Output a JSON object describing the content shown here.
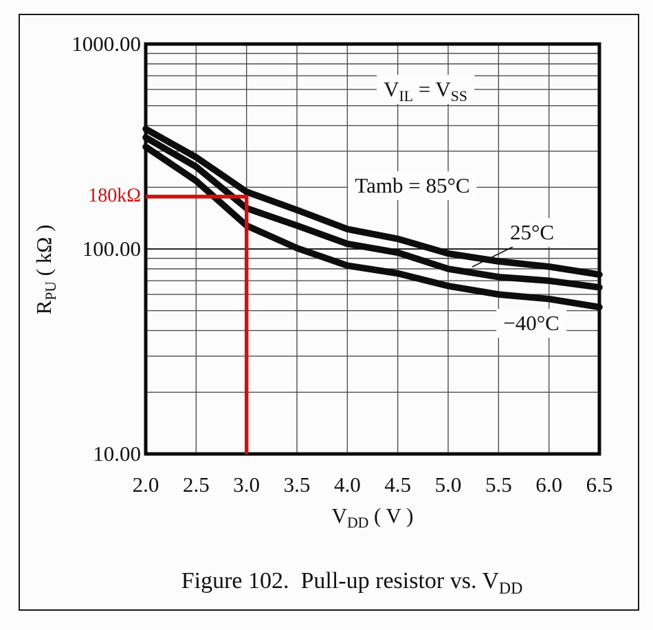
{
  "figure": {
    "caption": {
      "prefix": "Figure 102.  Pull-up resistor vs. V",
      "sub": "DD"
    }
  },
  "chart_data": {
    "type": "line",
    "title": "",
    "grid": "on",
    "xlabel": {
      "prefix": "V",
      "sub": "DD",
      "suffix": " ( V )"
    },
    "ylabel": {
      "prefix": "R",
      "sub": "PU",
      "suffix": " ( kΩ )"
    },
    "x_axis": {
      "min": 2.0,
      "max": 6.5,
      "ticks": [
        {
          "value": 2.0,
          "label": "2.0"
        },
        {
          "value": 2.5,
          "label": "2.5"
        },
        {
          "value": 3.0,
          "label": "3.0"
        },
        {
          "value": 3.5,
          "label": "3.5"
        },
        {
          "value": 4.0,
          "label": "4.0"
        },
        {
          "value": 4.5,
          "label": "4.5"
        },
        {
          "value": 5.0,
          "label": "5.0"
        },
        {
          "value": 5.5,
          "label": "5.5"
        },
        {
          "value": 6.0,
          "label": "6.0"
        },
        {
          "value": 6.5,
          "label": "6.5"
        }
      ]
    },
    "y_axis": {
      "scale": "log",
      "min": 10,
      "max": 1000,
      "ticks": [
        {
          "value": 1000,
          "label": "1000.00"
        },
        {
          "value": 100,
          "label": "100.00"
        },
        {
          "value": 10,
          "label": "10.00"
        }
      ]
    },
    "x": [
      2.0,
      2.5,
      3.0,
      3.5,
      4.0,
      4.5,
      5.0,
      5.5,
      6.0,
      6.5
    ],
    "series": [
      {
        "name": "85C",
        "label": "Tamb = 85°C",
        "values": [
          385,
          280,
          190,
          155,
          125,
          112,
          95,
          87,
          82,
          75
        ]
      },
      {
        "name": "25C",
        "label": "25°C",
        "values": [
          350,
          252,
          158,
          130,
          106,
          96,
          80,
          73,
          70,
          65
        ]
      },
      {
        "name": "-40C",
        "label": "−40°C",
        "values": [
          315,
          215,
          130,
          101,
          83,
          76,
          66,
          60,
          57,
          52
        ]
      }
    ],
    "condition_note": {
      "p1": "V",
      "sub1": "IL",
      "p2": " = V",
      "sub2": "SS"
    },
    "red_marker": {
      "x": 3.0,
      "y_kohm": 180,
      "label": "180kΩ",
      "color": "#cf1110"
    },
    "curve_color": "#0d0d0d",
    "grid_color": "#4f4f4f"
  }
}
